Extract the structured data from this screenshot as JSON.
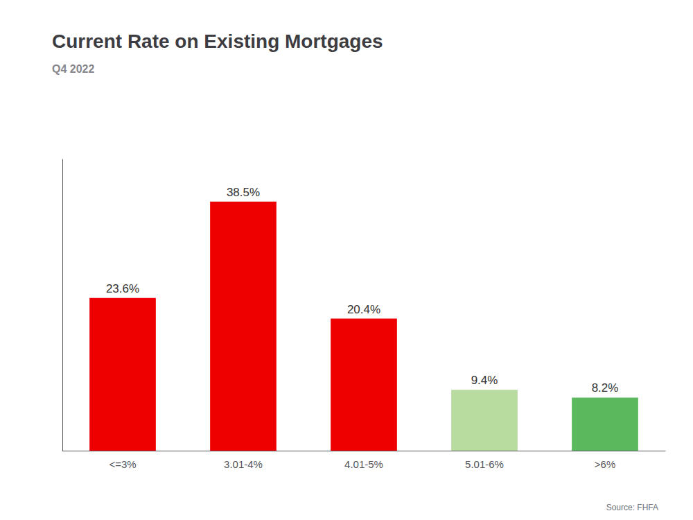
{
  "chart_data": {
    "type": "bar",
    "title": "Current Rate on Existing Mortgages",
    "subtitle": "Q4 2022",
    "annotations": [
      "Source: FHFA"
    ],
    "categories": [
      "<=3%",
      "3.01-4%",
      "4.01-5%",
      "5.01-6%",
      ">6%"
    ],
    "values": [
      23.6,
      38.5,
      20.4,
      9.4,
      8.2
    ],
    "value_labels": [
      "23.6%",
      "38.5%",
      "20.4%",
      "9.4%",
      "8.2%"
    ],
    "data_labels": true,
    "colors": [
      "#ee0000",
      "#ee0000",
      "#ee0000",
      "#b8dba0",
      "#5cb85c"
    ],
    "ylim": [
      0,
      45
    ],
    "grid": false,
    "tick_labels": "x"
  }
}
